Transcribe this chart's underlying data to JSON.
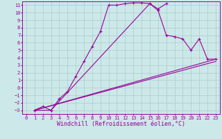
{
  "xlabel": "Windchill (Refroidissement éolien,°C)",
  "xlim": [
    -0.5,
    23.5
  ],
  "ylim": [
    -3.5,
    11.5
  ],
  "xticks": [
    0,
    1,
    2,
    3,
    4,
    5,
    6,
    7,
    8,
    9,
    10,
    11,
    12,
    13,
    14,
    15,
    16,
    17,
    18,
    19,
    20,
    21,
    22,
    23
  ],
  "yticks": [
    -3,
    -2,
    -1,
    0,
    1,
    2,
    3,
    4,
    5,
    6,
    7,
    8,
    9,
    10,
    11
  ],
  "bg_color": "#cce8e8",
  "grid_color": "#aacccc",
  "line_color": "#990099",
  "line1_x": [
    1,
    2,
    3,
    4,
    5,
    6,
    7,
    8,
    9,
    10,
    11,
    12,
    13,
    14,
    15,
    16,
    17
  ],
  "line1_y": [
    -3,
    -2.5,
    -3,
    -1.5,
    -0.5,
    1.5,
    3.5,
    5.5,
    7.5,
    11,
    11,
    11.2,
    11.3,
    11.3,
    11.2,
    10.5,
    11.2
  ],
  "line2_x": [
    1,
    3,
    15,
    16,
    17,
    18,
    19,
    20,
    21,
    22,
    23
  ],
  "line2_y": [
    -3,
    -3,
    11.2,
    10.3,
    7,
    6.8,
    6.5,
    5.0,
    6.5,
    3.8,
    3.8
  ],
  "line3_x": [
    1,
    23
  ],
  "line3_y": [
    -3,
    3.8
  ],
  "line4_x": [
    1,
    23
  ],
  "line4_y": [
    -3,
    3.5
  ],
  "tick_fontsize": 5.0,
  "label_fontsize": 6.0
}
